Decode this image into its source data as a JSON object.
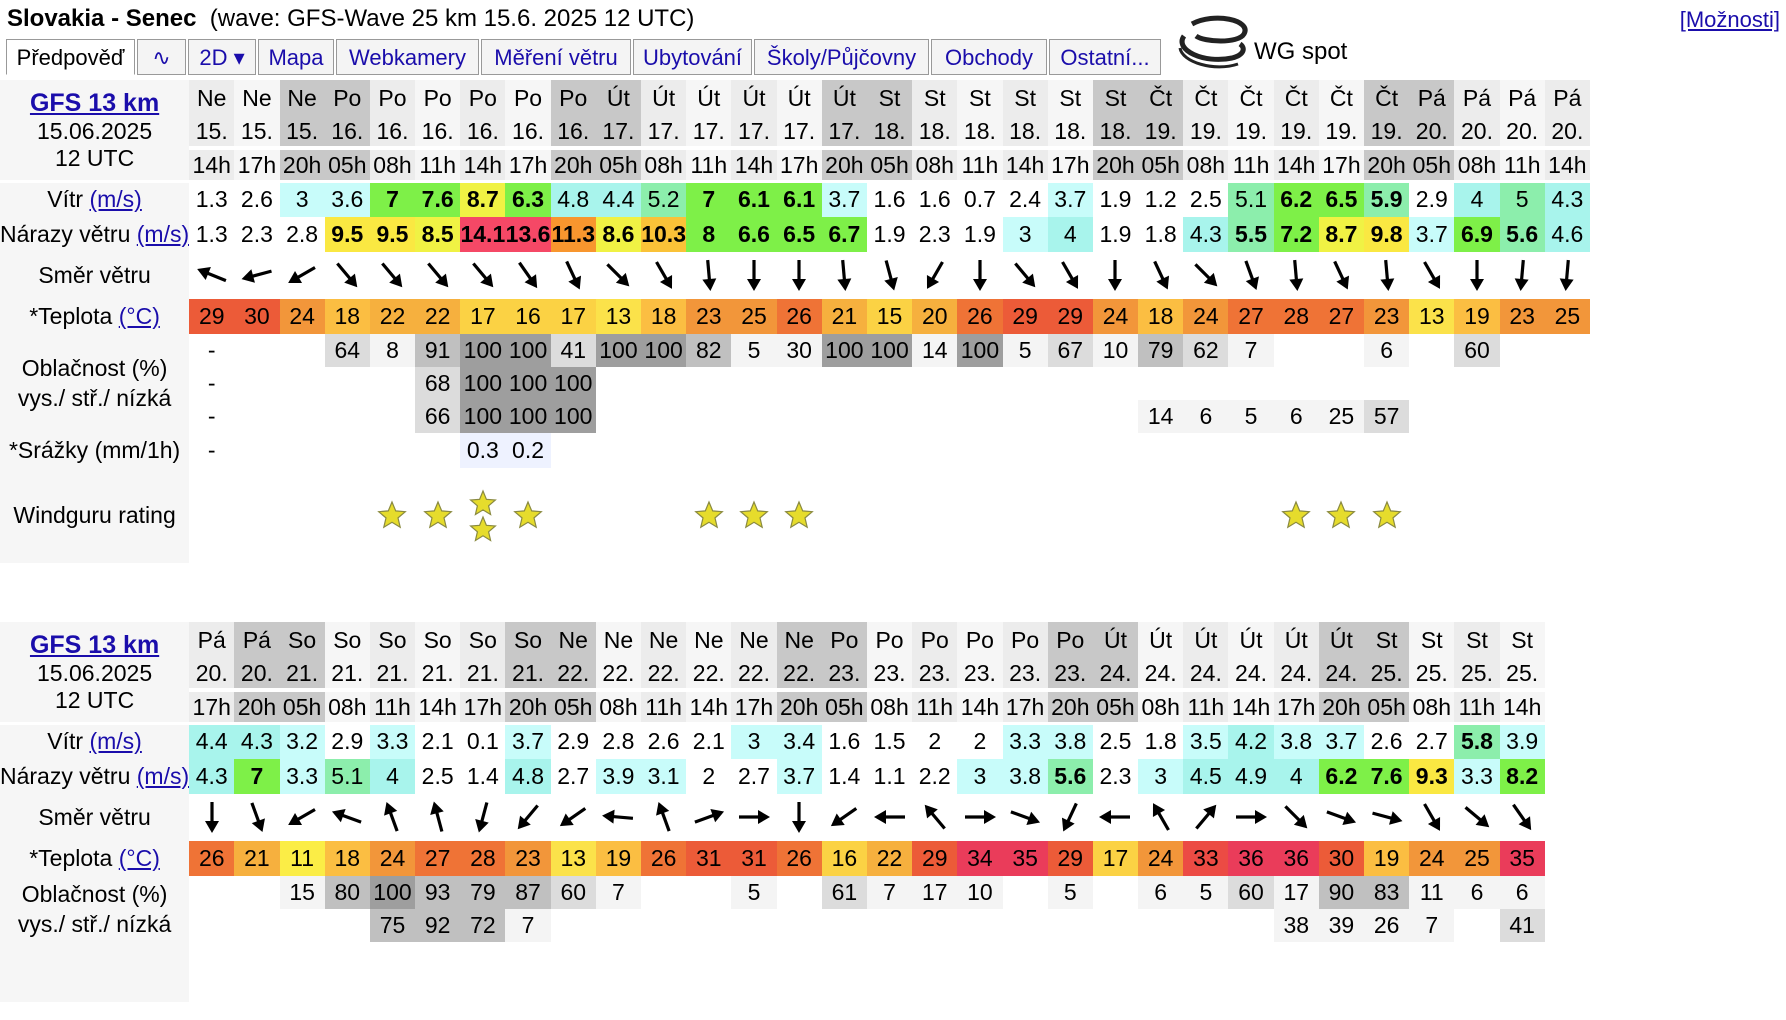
{
  "header": {
    "location": "Slovakia - Senec",
    "wave_info": "(wave: GFS-Wave 25 km 15.6. 2025 12 UTC)",
    "options_label": "[Možnosti]",
    "brand": "WG spot"
  },
  "tabs": [
    "Předpověď",
    "∿",
    "2D ▾",
    "Mapa",
    "Webkamery",
    "Měření větru",
    "Ubytování",
    "Školy/Půjčovny",
    "Obchody",
    "Ostatní..."
  ],
  "labels": {
    "wind": "Vítr",
    "gusts": "Nárazy větru",
    "unit_ms": "(m/s)",
    "direction": "Směr větru",
    "temp": "*Teplota",
    "unit_c": "(°C)",
    "cloud1": "Oblačnost (%)",
    "cloud2": "vys./ stř./ nízká",
    "precip": "*Srážky (mm/1h)",
    "rating": "Windguru rating"
  },
  "colors": {
    "link": "#1a0dab",
    "header_dark": "#c8c8c8",
    "header_light": "#ececec",
    "star": "#e6dc2c"
  },
  "forecasts": [
    {
      "model": "GFS 13 km",
      "date": "15.06.2025",
      "run": "12 UTC",
      "columns": [
        {
          "day": "Ne",
          "date": "15.",
          "hour": "14h",
          "wind": 1.3,
          "gust": 1.3,
          "dir": 112,
          "temp": 29,
          "ch": "-",
          "cm": "-",
          "cl": "-",
          "rain": "-",
          "stars": 0
        },
        {
          "day": "Ne",
          "date": "15.",
          "hour": "17h",
          "wind": 2.6,
          "gust": 2.3,
          "dir": 75,
          "temp": 30,
          "ch": "",
          "cm": "",
          "cl": "",
          "rain": "",
          "stars": 0
        },
        {
          "day": "Ne",
          "date": "15.",
          "hour": "20h",
          "wind": 3,
          "gust": 2.8,
          "dir": 60,
          "temp": 24,
          "ch": "",
          "cm": "",
          "cl": "",
          "rain": "",
          "stars": 0
        },
        {
          "day": "Po",
          "date": "16.",
          "hour": "05h",
          "wind": 3.6,
          "gust": 9.5,
          "dir": -40,
          "temp": 18,
          "ch": "64",
          "cm": "",
          "cl": "",
          "rain": "",
          "stars": 0
        },
        {
          "day": "Po",
          "date": "16.",
          "hour": "08h",
          "wind": 7,
          "gust": 9.5,
          "dir": -40,
          "temp": 22,
          "ch": "8",
          "cm": "",
          "cl": "",
          "rain": "",
          "stars": 1
        },
        {
          "day": "Po",
          "date": "16.",
          "hour": "11h",
          "wind": 7.6,
          "gust": 8.5,
          "dir": -40,
          "temp": 22,
          "ch": "91",
          "cm": "68",
          "cl": "66",
          "rain": "",
          "stars": 1
        },
        {
          "day": "Po",
          "date": "16.",
          "hour": "14h",
          "wind": 8.7,
          "gust": 14.1,
          "dir": -40,
          "temp": 17,
          "ch": "100",
          "cm": "100",
          "cl": "100",
          "rain": "0.3",
          "stars": 2
        },
        {
          "day": "Po",
          "date": "16.",
          "hour": "17h",
          "wind": 6.3,
          "gust": 13.6,
          "dir": -35,
          "temp": 16,
          "ch": "100",
          "cm": "100",
          "cl": "100",
          "rain": "0.2",
          "stars": 1
        },
        {
          "day": "Po",
          "date": "16.",
          "hour": "20h",
          "wind": 4.8,
          "gust": 11.3,
          "dir": -25,
          "temp": 17,
          "ch": "41",
          "cm": "100",
          "cl": "100",
          "rain": "",
          "stars": 0
        },
        {
          "day": "Út",
          "date": "17.",
          "hour": "05h",
          "wind": 4.4,
          "gust": 8.6,
          "dir": -45,
          "temp": 13,
          "ch": "100",
          "cm": "",
          "cl": "",
          "rain": "",
          "stars": 0
        },
        {
          "day": "Út",
          "date": "17.",
          "hour": "08h",
          "wind": 5.2,
          "gust": 10.3,
          "dir": -30,
          "temp": 18,
          "ch": "100",
          "cm": "",
          "cl": "",
          "rain": "",
          "stars": 0
        },
        {
          "day": "Út",
          "date": "17.",
          "hour": "11h",
          "wind": 7,
          "gust": 8,
          "dir": -5,
          "temp": 23,
          "ch": "82",
          "cm": "",
          "cl": "",
          "rain": "",
          "stars": 1
        },
        {
          "day": "Út",
          "date": "17.",
          "hour": "14h",
          "wind": 6.1,
          "gust": 6.6,
          "dir": 0,
          "temp": 25,
          "ch": "5",
          "cm": "",
          "cl": "",
          "rain": "",
          "stars": 1
        },
        {
          "day": "Út",
          "date": "17.",
          "hour": "17h",
          "wind": 6.1,
          "gust": 6.5,
          "dir": 0,
          "temp": 26,
          "ch": "30",
          "cm": "",
          "cl": "",
          "rain": "",
          "stars": 1
        },
        {
          "day": "Út",
          "date": "17.",
          "hour": "20h",
          "wind": 3.7,
          "gust": 6.7,
          "dir": -5,
          "temp": 21,
          "ch": "100",
          "cm": "",
          "cl": "",
          "rain": "",
          "stars": 0
        },
        {
          "day": "St",
          "date": "18.",
          "hour": "05h",
          "wind": 1.6,
          "gust": 1.9,
          "dir": -15,
          "temp": 15,
          "ch": "100",
          "cm": "",
          "cl": "",
          "rain": "",
          "stars": 0
        },
        {
          "day": "St",
          "date": "18.",
          "hour": "08h",
          "wind": 1.6,
          "gust": 2.3,
          "dir": 30,
          "temp": 20,
          "ch": "14",
          "cm": "",
          "cl": "",
          "rain": "",
          "stars": 0
        },
        {
          "day": "St",
          "date": "18.",
          "hour": "11h",
          "wind": 0.7,
          "gust": 1.9,
          "dir": 0,
          "temp": 26,
          "ch": "100",
          "cm": "",
          "cl": "",
          "rain": "",
          "stars": 0
        },
        {
          "day": "St",
          "date": "18.",
          "hour": "14h",
          "wind": 2.4,
          "gust": 3,
          "dir": -40,
          "temp": 29,
          "ch": "5",
          "cm": "",
          "cl": "",
          "rain": "",
          "stars": 0
        },
        {
          "day": "St",
          "date": "18.",
          "hour": "17h",
          "wind": 3.7,
          "gust": 4,
          "dir": -30,
          "temp": 29,
          "ch": "67",
          "cm": "",
          "cl": "",
          "rain": "",
          "stars": 0
        },
        {
          "day": "St",
          "date": "18.",
          "hour": "20h",
          "wind": 1.9,
          "gust": 1.9,
          "dir": 0,
          "temp": 24,
          "ch": "10",
          "cm": "",
          "cl": "",
          "rain": "",
          "stars": 0
        },
        {
          "day": "Čt",
          "date": "19.",
          "hour": "05h",
          "wind": 1.2,
          "gust": 1.8,
          "dir": -25,
          "temp": 18,
          "ch": "79",
          "cm": "",
          "cl": "14",
          "rain": "",
          "stars": 0
        },
        {
          "day": "Čt",
          "date": "19.",
          "hour": "08h",
          "wind": 2.5,
          "gust": 4.3,
          "dir": -45,
          "temp": 24,
          "ch": "62",
          "cm": "",
          "cl": "6",
          "rain": "",
          "stars": 0
        },
        {
          "day": "Čt",
          "date": "19.",
          "hour": "11h",
          "wind": 5.1,
          "gust": 5.5,
          "dir": -20,
          "temp": 27,
          "ch": "7",
          "cm": "",
          "cl": "5",
          "rain": "",
          "stars": 0
        },
        {
          "day": "Čt",
          "date": "19.",
          "hour": "14h",
          "wind": 6.2,
          "gust": 7.2,
          "dir": -5,
          "temp": 28,
          "ch": "",
          "cm": "",
          "cl": "6",
          "rain": "",
          "stars": 1
        },
        {
          "day": "Čt",
          "date": "19.",
          "hour": "17h",
          "wind": 6.5,
          "gust": 8.7,
          "dir": -25,
          "temp": 27,
          "ch": "",
          "cm": "",
          "cl": "25",
          "rain": "",
          "stars": 1
        },
        {
          "day": "Čt",
          "date": "19.",
          "hour": "20h",
          "wind": 5.9,
          "gust": 9.8,
          "dir": -5,
          "temp": 23,
          "ch": "6",
          "cm": "",
          "cl": "57",
          "rain": "",
          "stars": 1
        },
        {
          "day": "Pá",
          "date": "20.",
          "hour": "05h",
          "wind": 2.9,
          "gust": 3.7,
          "dir": -30,
          "temp": 13,
          "ch": "",
          "cm": "",
          "cl": "",
          "rain": "",
          "stars": 0
        },
        {
          "day": "Pá",
          "date": "20.",
          "hour": "08h",
          "wind": 4,
          "gust": 6.9,
          "dir": 0,
          "temp": 19,
          "ch": "60",
          "cm": "",
          "cl": "",
          "rain": "",
          "stars": 0
        },
        {
          "day": "Pá",
          "date": "20.",
          "hour": "11h",
          "wind": 5,
          "gust": 5.6,
          "dir": 5,
          "temp": 23,
          "ch": "",
          "cm": "",
          "cl": "",
          "rain": "",
          "stars": 0
        },
        {
          "day": "Pá",
          "date": "20.",
          "hour": "14h",
          "wind": 4.3,
          "gust": 4.6,
          "dir": 5,
          "temp": 25,
          "ch": "",
          "cm": "",
          "cl": "",
          "rain": "",
          "stars": 0
        }
      ]
    },
    {
      "model": "GFS 13 km",
      "date": "15.06.2025",
      "run": "12 UTC",
      "columns": [
        {
          "day": "Pá",
          "date": "20.",
          "hour": "17h",
          "wind": 4.4,
          "gust": 4.3,
          "dir": 0,
          "temp": 26,
          "ch": "",
          "cm": "",
          "stars": 0
        },
        {
          "day": "Pá",
          "date": "20.",
          "hour": "20h",
          "wind": 4.3,
          "gust": 7,
          "dir": -20,
          "temp": 21,
          "ch": "",
          "cm": "",
          "stars": 0
        },
        {
          "day": "So",
          "date": "21.",
          "hour": "05h",
          "wind": 3.2,
          "gust": 3.3,
          "dir": 60,
          "temp": 11,
          "ch": "15",
          "cm": "",
          "stars": 0
        },
        {
          "day": "So",
          "date": "21.",
          "hour": "08h",
          "wind": 2.9,
          "gust": 5.1,
          "dir": 110,
          "temp": 18,
          "ch": "80",
          "cm": "",
          "stars": 0
        },
        {
          "day": "So",
          "date": "21.",
          "hour": "11h",
          "wind": 3.3,
          "gust": 4,
          "dir": 160,
          "temp": 24,
          "ch": "100",
          "cm": "75",
          "stars": 0
        },
        {
          "day": "So",
          "date": "21.",
          "hour": "14h",
          "wind": 2.1,
          "gust": 2.5,
          "dir": 165,
          "temp": 27,
          "ch": "93",
          "cm": "92",
          "stars": 0
        },
        {
          "day": "So",
          "date": "21.",
          "hour": "17h",
          "wind": 0.1,
          "gust": 1.4,
          "dir": 15,
          "temp": 28,
          "ch": "79",
          "cm": "72",
          "stars": 0
        },
        {
          "day": "So",
          "date": "21.",
          "hour": "20h",
          "wind": 3.7,
          "gust": 4.8,
          "dir": 40,
          "temp": 23,
          "ch": "87",
          "cm": "7",
          "stars": 0
        },
        {
          "day": "Ne",
          "date": "22.",
          "hour": "05h",
          "wind": 2.9,
          "gust": 2.7,
          "dir": 55,
          "temp": 13,
          "ch": "60",
          "cm": "",
          "stars": 0
        },
        {
          "day": "Ne",
          "date": "22.",
          "hour": "08h",
          "wind": 2.8,
          "gust": 3.9,
          "dir": 95,
          "temp": 19,
          "ch": "7",
          "cm": "",
          "stars": 0
        },
        {
          "day": "Ne",
          "date": "22.",
          "hour": "11h",
          "wind": 2.6,
          "gust": 3.1,
          "dir": 160,
          "temp": 26,
          "ch": "",
          "cm": "",
          "stars": 0
        },
        {
          "day": "Ne",
          "date": "22.",
          "hour": "14h",
          "wind": 2.1,
          "gust": 2,
          "dir": -110,
          "temp": 31,
          "ch": "",
          "cm": "",
          "stars": 0
        },
        {
          "day": "Ne",
          "date": "22.",
          "hour": "17h",
          "wind": 3,
          "gust": 2.7,
          "dir": -90,
          "temp": 31,
          "ch": "5",
          "cm": "",
          "stars": 0
        },
        {
          "day": "Ne",
          "date": "22.",
          "hour": "20h",
          "wind": 3.4,
          "gust": 3.7,
          "dir": 0,
          "temp": 26,
          "ch": "",
          "cm": "",
          "stars": 0
        },
        {
          "day": "Po",
          "date": "23.",
          "hour": "05h",
          "wind": 1.6,
          "gust": 1.4,
          "dir": 55,
          "temp": 16,
          "ch": "61",
          "cm": "",
          "stars": 0
        },
        {
          "day": "Po",
          "date": "23.",
          "hour": "08h",
          "wind": 1.5,
          "gust": 1.1,
          "dir": 90,
          "temp": 22,
          "ch": "7",
          "cm": "",
          "stars": 0
        },
        {
          "day": "Po",
          "date": "23.",
          "hour": "11h",
          "wind": 2,
          "gust": 2.2,
          "dir": 140,
          "temp": 29,
          "ch": "17",
          "cm": "",
          "stars": 0
        },
        {
          "day": "Po",
          "date": "23.",
          "hour": "14h",
          "wind": 2,
          "gust": 3,
          "dir": -90,
          "temp": 34,
          "ch": "10",
          "cm": "",
          "stars": 0
        },
        {
          "day": "Po",
          "date": "23.",
          "hour": "17h",
          "wind": 3.3,
          "gust": 3.8,
          "dir": -70,
          "temp": 35,
          "ch": "",
          "cm": "",
          "stars": 0
        },
        {
          "day": "Po",
          "date": "23.",
          "hour": "20h",
          "wind": 3.8,
          "gust": 5.6,
          "dir": 25,
          "temp": 29,
          "ch": "5",
          "cm": "",
          "stars": 0
        },
        {
          "day": "Út",
          "date": "24.",
          "hour": "05h",
          "wind": 2.5,
          "gust": 2.3,
          "dir": 90,
          "temp": 17,
          "ch": "",
          "cm": "",
          "stars": 0
        },
        {
          "day": "Út",
          "date": "24.",
          "hour": "08h",
          "wind": 1.8,
          "gust": 3,
          "dir": 150,
          "temp": 24,
          "ch": "6",
          "cm": "",
          "stars": 0
        },
        {
          "day": "Út",
          "date": "24.",
          "hour": "11h",
          "wind": 3.5,
          "gust": 4.5,
          "dir": -140,
          "temp": 33,
          "ch": "5",
          "cm": "",
          "stars": 0
        },
        {
          "day": "Út",
          "date": "24.",
          "hour": "14h",
          "wind": 4.2,
          "gust": 4.9,
          "dir": -90,
          "temp": 36,
          "ch": "60",
          "cm": "",
          "stars": 0
        },
        {
          "day": "Út",
          "date": "24.",
          "hour": "17h",
          "wind": 3.8,
          "gust": 4,
          "dir": -45,
          "temp": 36,
          "ch": "17",
          "cm": "38",
          "stars": 0
        },
        {
          "day": "Út",
          "date": "24.",
          "hour": "20h",
          "wind": 3.7,
          "gust": 6.2,
          "dir": -70,
          "temp": 30,
          "ch": "90",
          "cm": "39",
          "stars": 0
        },
        {
          "day": "St",
          "date": "25.",
          "hour": "05h",
          "wind": 2.6,
          "gust": 7.6,
          "dir": -75,
          "temp": 19,
          "ch": "83",
          "cm": "26",
          "stars": 0
        },
        {
          "day": "St",
          "date": "25.",
          "hour": "08h",
          "wind": 2.7,
          "gust": 9.3,
          "dir": -30,
          "temp": 24,
          "ch": "11",
          "cm": "7",
          "stars": 0
        },
        {
          "day": "St",
          "date": "25.",
          "hour": "11h",
          "wind": 5.8,
          "gust": 3.3,
          "dir": -50,
          "temp": 25,
          "ch": "6",
          "cm": "",
          "stars": 0
        },
        {
          "day": "St",
          "date": "25.",
          "hour": "14h",
          "wind": 3.9,
          "gust": 8.2,
          "dir": -35,
          "temp": 35,
          "ch": "6",
          "cm": "41",
          "stars": 0
        }
      ]
    }
  ]
}
